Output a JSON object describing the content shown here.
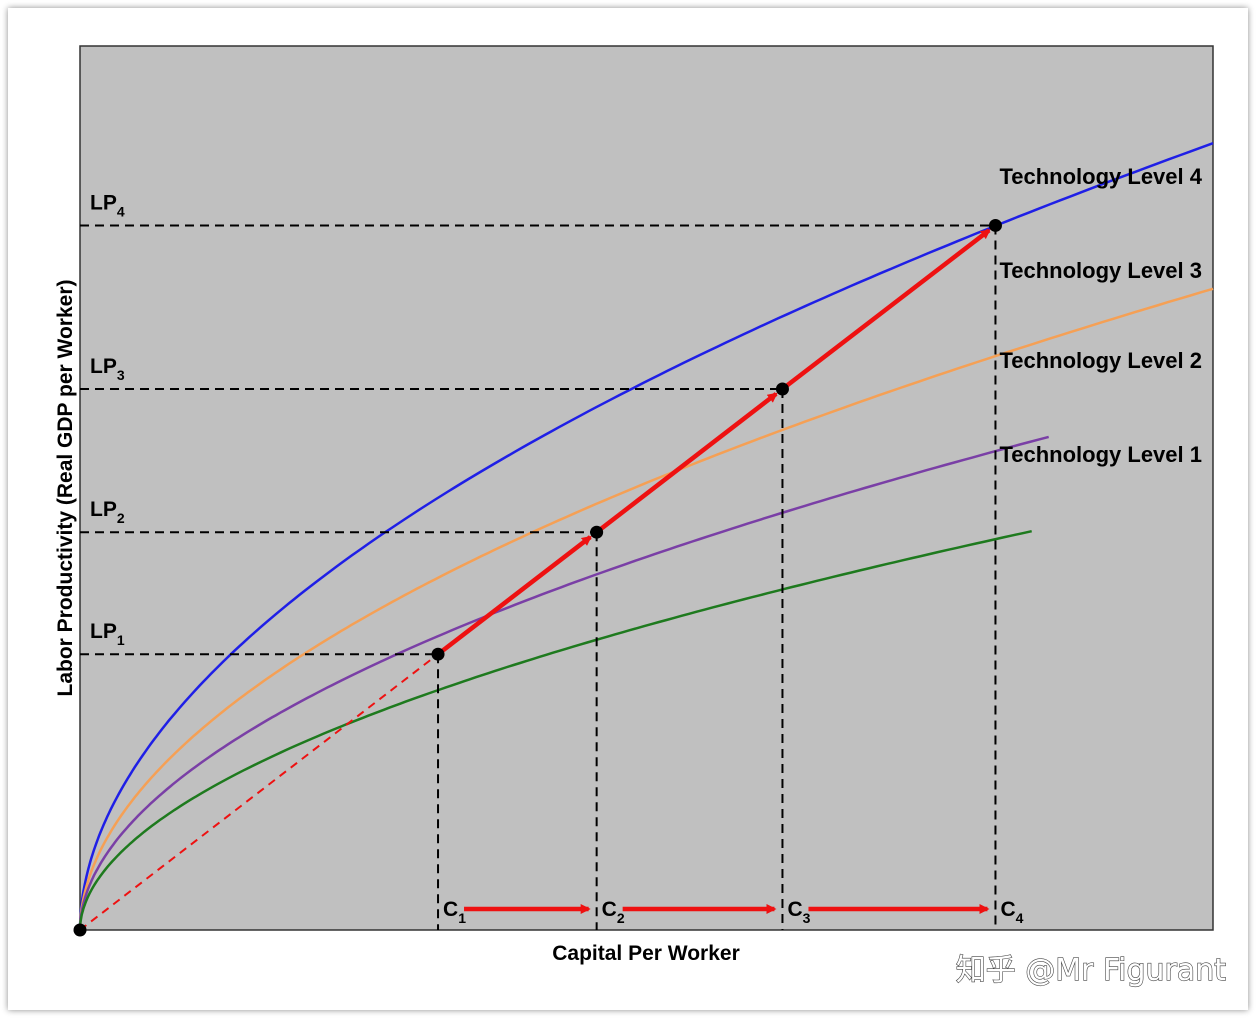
{
  "chart_data": {
    "type": "line",
    "title": "",
    "xlabel": "Capital Per Worker",
    "ylabel": "Labor Productivity (Real GDP per Worker)",
    "xlim": [
      0,
      1
    ],
    "ylim": [
      0,
      1
    ],
    "grid": false,
    "plot_background": "#c0c0c0",
    "series": [
      {
        "name": "Technology Level 4",
        "color": "#1f1fe6",
        "scale": 1.0
      },
      {
        "name": "Technology Level 3",
        "color": "#f5a055",
        "scale": 0.815
      },
      {
        "name": "Technology Level 2",
        "color": "#7a3fa6",
        "scale": 0.68
      },
      {
        "name": "Technology Level 1",
        "color": "#1e7a1e",
        "scale": 0.555
      }
    ],
    "points": [
      {
        "label_main": "C",
        "label_sub": "1",
        "x": 0.316,
        "y_label_main": "LP",
        "y_label_sub": "1",
        "y": 0.312
      },
      {
        "label_main": "C",
        "label_sub": "2",
        "x": 0.456,
        "y_label_main": "LP",
        "y_label_sub": "2",
        "y": 0.45
      },
      {
        "label_main": "C",
        "label_sub": "3",
        "x": 0.62,
        "y_label_main": "LP",
        "y_label_sub": "3",
        "y": 0.612
      },
      {
        "label_main": "C",
        "label_sub": "4",
        "x": 0.808,
        "y_label_main": "LP",
        "y_label_sub": "4",
        "y": 0.797
      }
    ],
    "colors": {
      "path": "#ee1111",
      "guide": "#000000"
    }
  },
  "watermark": "知乎 @Mr Figurant"
}
